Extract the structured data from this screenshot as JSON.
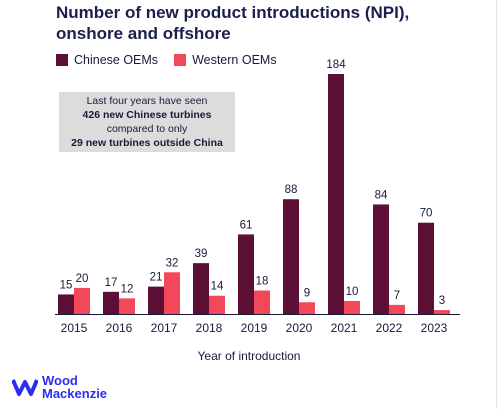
{
  "title": "Number of new product introductions (NPI),",
  "subtitle": "onshore and offshore",
  "colors": {
    "chinese": "#5c1035",
    "western": "#f2485a",
    "callout_bg": "#dcdcdc",
    "logo": "#2b2ef0"
  },
  "callout": {
    "line1": "Last four years have seen",
    "line2": "426 new Chinese turbines",
    "line3": "compared to only",
    "line4": "29 new turbines outside China"
  },
  "logo": {
    "line1": "Wood",
    "line2": "Mackenzie",
    "icon": "wave-logo-icon"
  },
  "chart_data": {
    "type": "bar",
    "categories": [
      "2015",
      "2016",
      "2017",
      "2018",
      "2019",
      "2020",
      "2021",
      "2022",
      "2023"
    ],
    "series": [
      {
        "name": "Chinese OEMs",
        "values": [
          15,
          17,
          21,
          39,
          61,
          88,
          184,
          84,
          70
        ]
      },
      {
        "name": "Western OEMs",
        "values": [
          20,
          12,
          32,
          14,
          18,
          9,
          10,
          7,
          3
        ]
      }
    ],
    "xlabel": "Year of introduction",
    "ylabel": "",
    "ylim": [
      0,
      184
    ],
    "grid": false,
    "legend": "top-left"
  }
}
